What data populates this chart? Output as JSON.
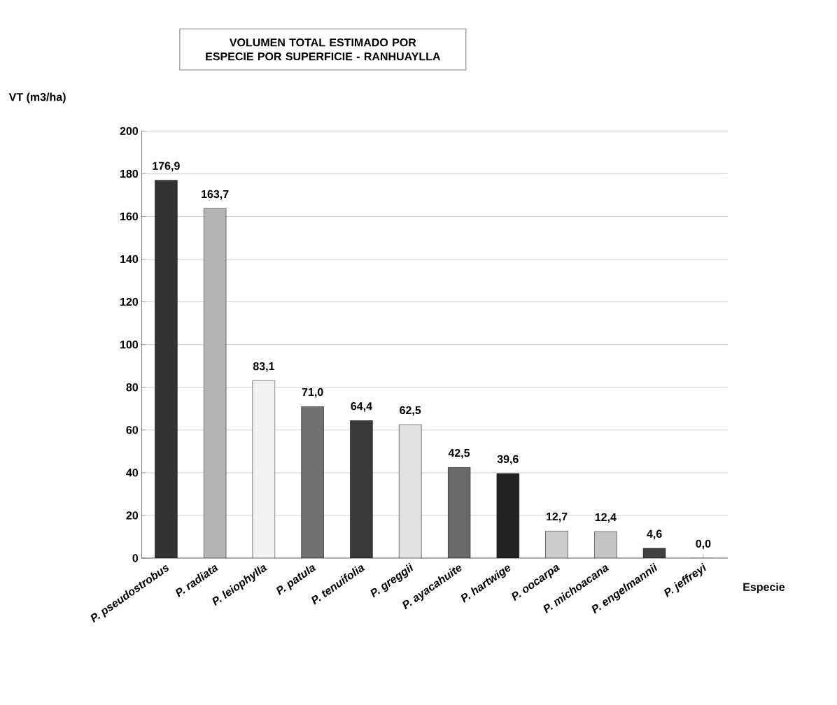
{
  "chart_data": {
    "type": "bar",
    "title": "VOLUMEN TOTAL ESTIMADO POR ESPECIE POR SUPERFICIE - RANHUAYLLA",
    "ylabel": "VT (m3/ha)",
    "xlabel": "Especie",
    "categories": [
      "P. pseudostrobus",
      "P. radiata",
      "P. leiophylla",
      "P. patula",
      "P. tenuifolia",
      "P. greggii",
      "P. ayacahuite",
      "P. hartwige",
      "P. oocarpa",
      "P. michoacana",
      "P. engelmannii",
      "P. jeffreyi"
    ],
    "values": [
      176.9,
      163.7,
      83.1,
      71.0,
      64.4,
      62.5,
      42.5,
      39.6,
      12.7,
      12.4,
      4.6,
      0.0
    ],
    "value_labels": [
      "176,9",
      "163,7",
      "83,1",
      "71,0",
      "64,4",
      "62,5",
      "42,5",
      "39,6",
      "12,7",
      "12,4",
      "4,6",
      "0,0"
    ],
    "colors": [
      "#333333",
      "#b4b4b4",
      "#f2f2f2",
      "#707070",
      "#3a3a3a",
      "#e2e2e2",
      "#6a6a6a",
      "#222222",
      "#cccccc",
      "#c4c4c4",
      "#404040",
      "#ffffff"
    ],
    "ylim": [
      0,
      200
    ],
    "yticks": [
      0,
      20,
      40,
      60,
      80,
      100,
      120,
      140,
      160,
      180,
      200
    ],
    "grid": "y"
  }
}
